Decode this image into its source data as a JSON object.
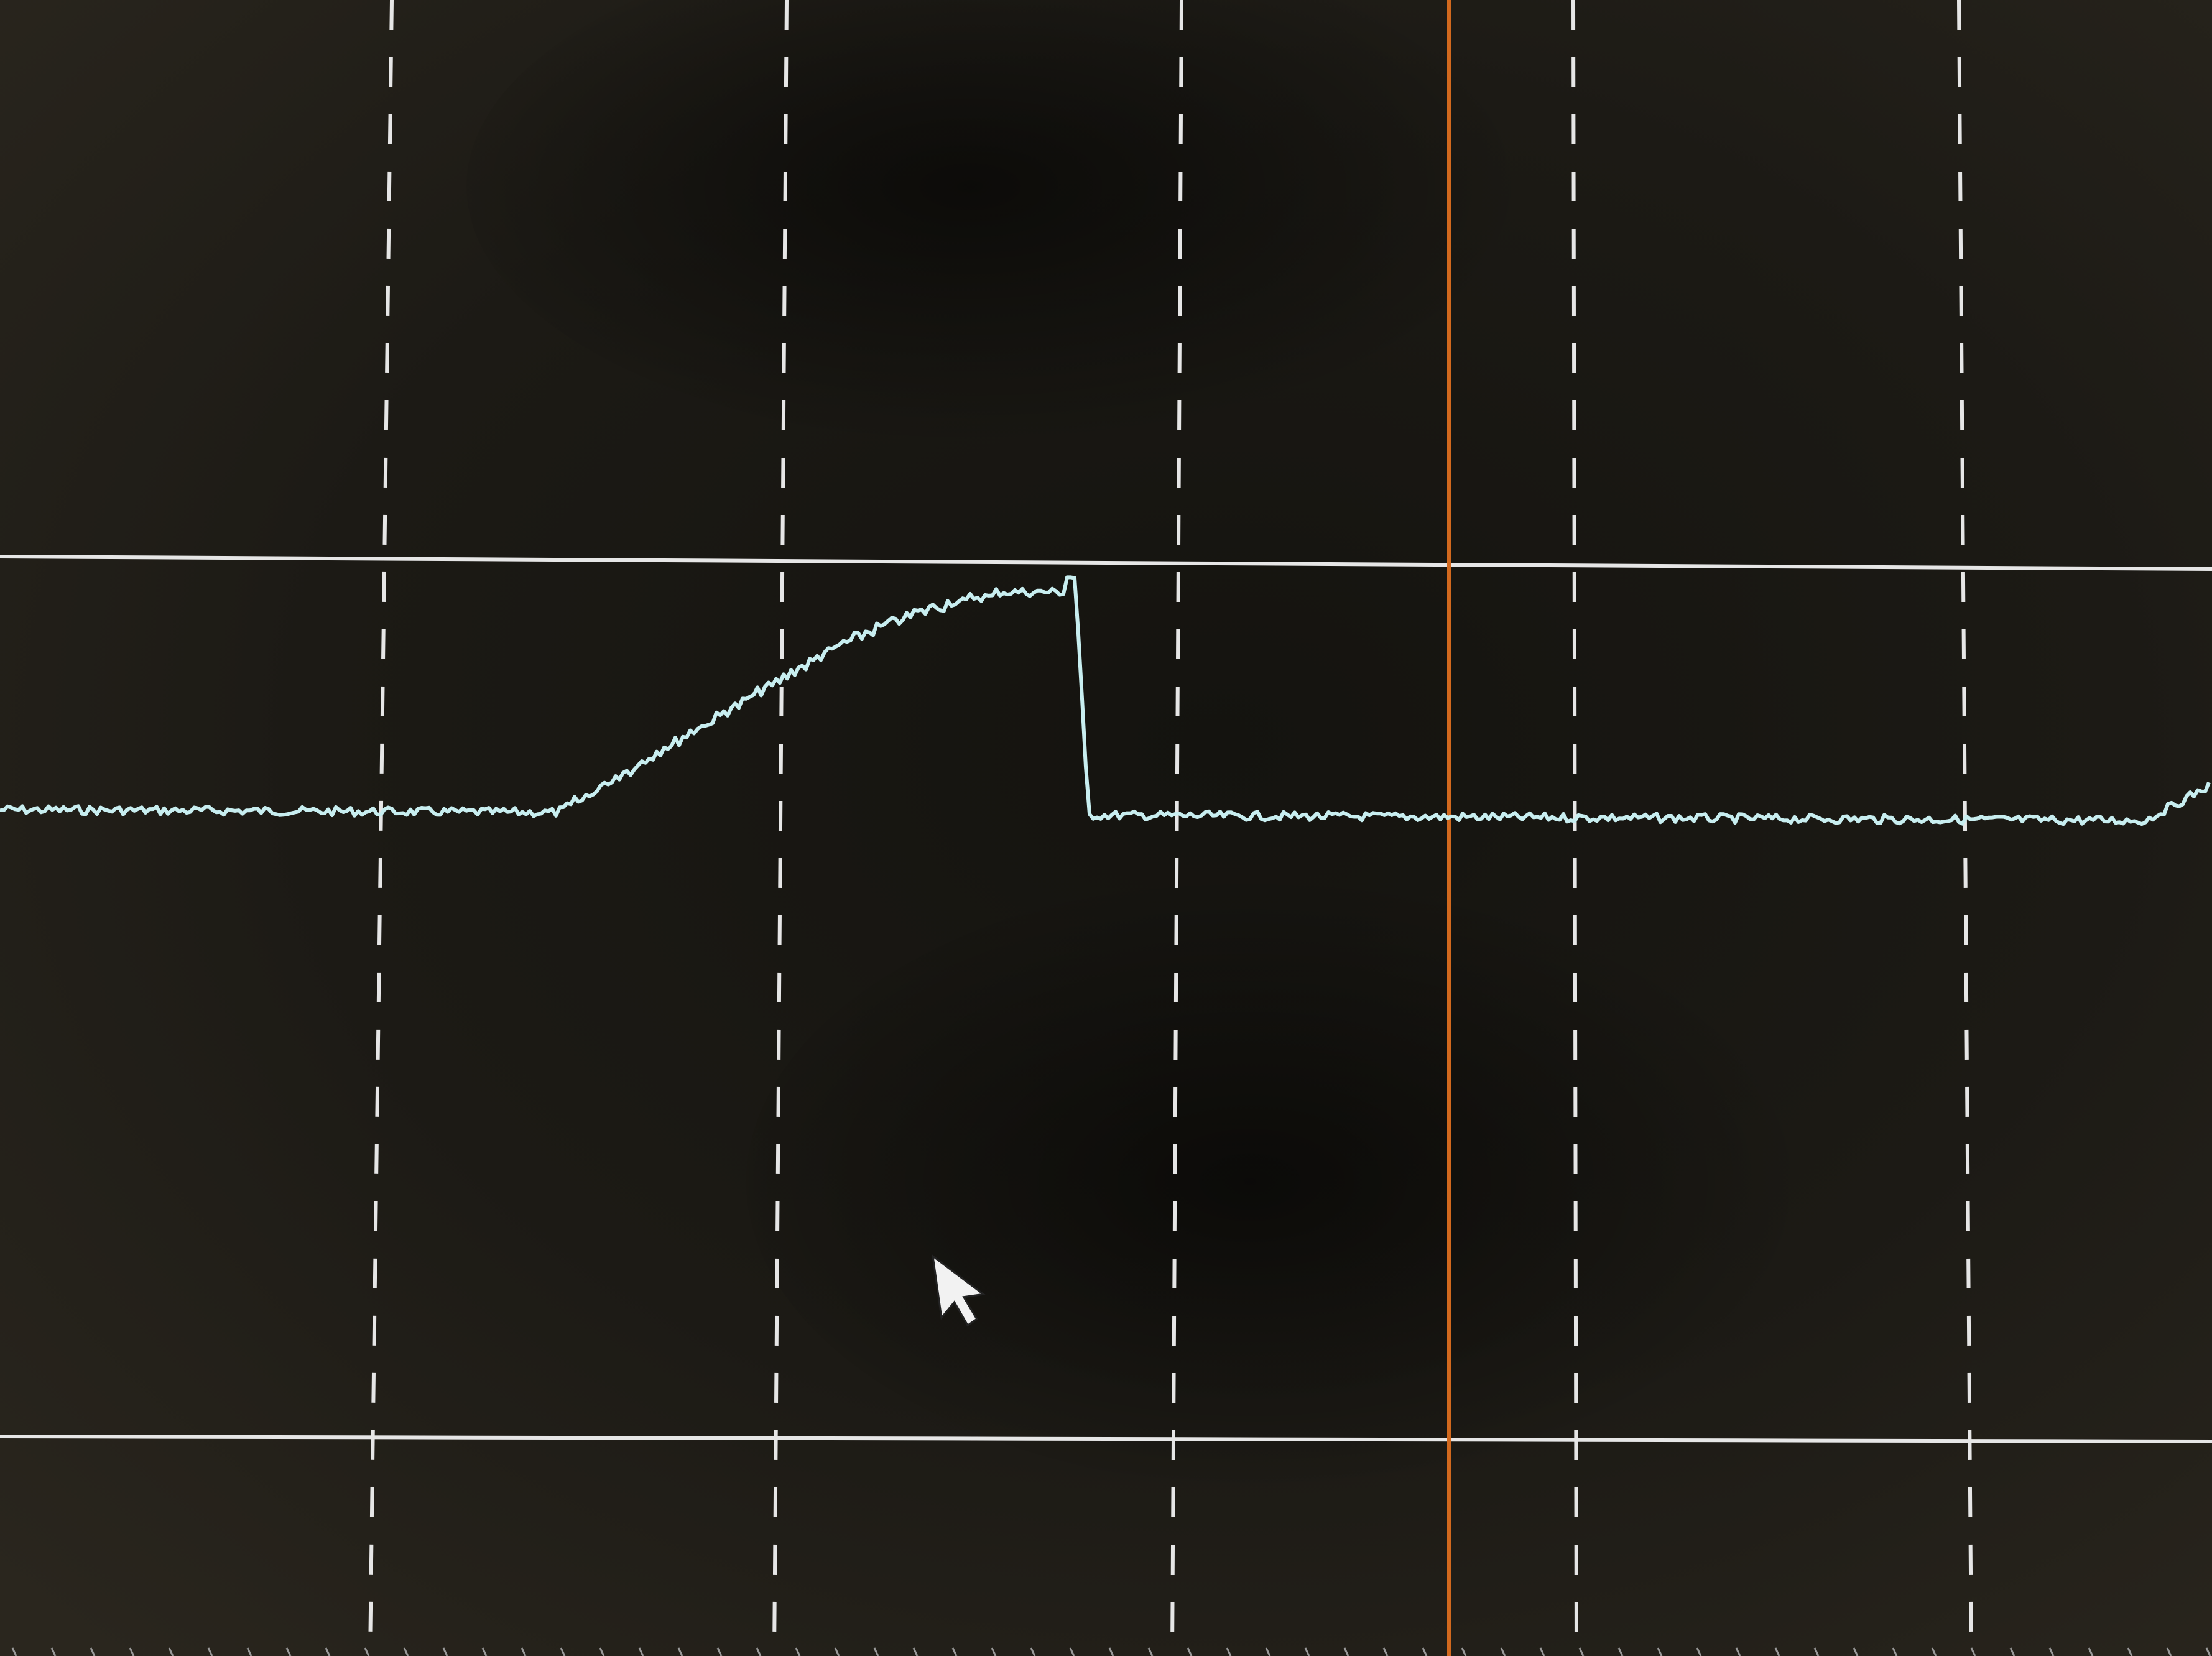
{
  "screen": {
    "background_color": "#1b1914",
    "vignette_color": "#0a0a0a",
    "grid_color": "#e6e6e6",
    "trace_color": "#c8eef0",
    "cursor_color": "#d2691e",
    "pointer_color": "#f2f2f2"
  },
  "grid": {
    "vertical_divisions_visible": 5,
    "style": "dashed",
    "horizontal_reference_lines": 2
  },
  "trace": {
    "shape": "baseline, smooth rising ramp to a plateau, then sharp drop back to baseline, rising again at right edge",
    "baseline_level": 0.0,
    "peak_level": 1.0
  },
  "cursor": {
    "orientation": "vertical",
    "color_name": "orange"
  },
  "pointer": {
    "icon": "arrow-pointer-icon"
  }
}
